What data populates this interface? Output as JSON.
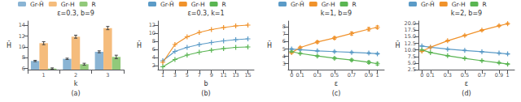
{
  "chart_data": [
    {
      "type": "bar",
      "title": "ε=0.3, b=9",
      "xlabel": "k",
      "ylabel": "H̃",
      "annotations": [
        "(a)"
      ],
      "categories": [
        "1",
        "2",
        "3"
      ],
      "series": [
        {
          "name": "Gr-Ĥ",
          "color": "#8ab4d4",
          "values": [
            7.4,
            7.8,
            9.1
          ],
          "errors": [
            0.12,
            0.12,
            0.18
          ]
        },
        {
          "name": "Gr-H",
          "color": "#f5bc7c",
          "values": [
            10.7,
            11.9,
            13.5
          ],
          "errors": [
            0.28,
            0.28,
            0.3
          ]
        },
        {
          "name": "R",
          "color": "#91c97a",
          "values": [
            6.0,
            6.8,
            8.15
          ],
          "errors": [
            0.12,
            0.18,
            0.32
          ]
        }
      ],
      "ylim": [
        5.8,
        14.8
      ],
      "yticks": [
        6,
        8,
        10,
        12,
        14
      ],
      "grid": false,
      "legend": "top"
    },
    {
      "type": "line",
      "title": "ε=0.3, k=1",
      "xlabel": "b",
      "ylabel": "H̃",
      "annotations": [
        "(b)"
      ],
      "x": [
        1,
        3,
        5,
        7,
        9,
        11,
        13,
        15
      ],
      "series": [
        {
          "name": "Gr-Ĥ",
          "color": "#5b9bc7",
          "values": [
            3.2,
            5.5,
            6.5,
            7.2,
            7.7,
            8.1,
            8.4,
            8.6
          ]
        },
        {
          "name": "Gr-H",
          "color": "#f0922b",
          "values": [
            2.8,
            7.2,
            9.1,
            10.2,
            10.9,
            11.4,
            11.8,
            12.0
          ]
        },
        {
          "name": "R",
          "color": "#5ab552",
          "values": [
            1.7,
            3.5,
            4.6,
            5.3,
            5.8,
            6.2,
            6.5,
            6.6
          ]
        }
      ],
      "xlim": [
        0.2,
        16.0
      ],
      "xticks": [
        1,
        3,
        5,
        7,
        9,
        11,
        13,
        15
      ],
      "ylim": [
        1,
        13
      ],
      "yticks": [
        2,
        4,
        6,
        8,
        10,
        12
      ],
      "marker": "plus",
      "grid": false,
      "legend": "top"
    },
    {
      "type": "line",
      "title": "k=1, b=9",
      "xlabel": "ε",
      "ylabel": "H̃",
      "annotations": [
        "(c)"
      ],
      "x": [
        0.0,
        0.1,
        0.3,
        0.5,
        0.7,
        0.9,
        1.0
      ],
      "series": [
        {
          "name": "Gr-Ĥ",
          "color": "#5b9bc7",
          "values": [
            5.0,
            4.9,
            4.75,
            4.65,
            4.55,
            4.45,
            4.35
          ],
          "errors": [
            0.07,
            0.07,
            0.07,
            0.07,
            0.07,
            0.07,
            0.07
          ]
        },
        {
          "name": "Gr-H",
          "color": "#f0922b",
          "values": [
            4.5,
            5.2,
            5.95,
            6.5,
            7.1,
            7.7,
            7.95
          ],
          "errors": [
            0.1,
            0.12,
            0.15,
            0.18,
            0.2,
            0.22,
            0.2
          ]
        },
        {
          "name": "R",
          "color": "#5ab552",
          "values": [
            4.65,
            4.4,
            4.05,
            3.75,
            3.5,
            3.2,
            3.0
          ],
          "errors": [
            0.08,
            0.08,
            0.1,
            0.12,
            0.14,
            0.18,
            0.18
          ]
        }
      ],
      "xlim": [
        -0.04,
        1.08
      ],
      "xticks": [
        0,
        0.1,
        0.3,
        0.5,
        0.7,
        0.9,
        1
      ],
      "ylim": [
        2.2,
        8.8
      ],
      "yticks": [
        3,
        4,
        5,
        6,
        7,
        8
      ],
      "marker": "plus",
      "grid": false,
      "legend": "top"
    },
    {
      "type": "line",
      "title": "k=2, b=9",
      "xlabel": "ε",
      "ylabel": "H̃",
      "annotations": [
        "(d)"
      ],
      "x": [
        0.0,
        0.1,
        0.3,
        0.5,
        0.7,
        0.9,
        1.0
      ],
      "series": [
        {
          "name": "Gr-Ĥ",
          "color": "#5b9bc7",
          "values": [
            11.5,
            11.0,
            10.3,
            9.8,
            9.3,
            8.8,
            8.5
          ],
          "errors": [
            0.12,
            0.12,
            0.12,
            0.12,
            0.12,
            0.12,
            0.12
          ]
        },
        {
          "name": "Gr-H",
          "color": "#f0922b",
          "values": [
            9.5,
            11.0,
            13.5,
            15.5,
            17.5,
            19.2,
            20.0
          ],
          "errors": [
            0.18,
            0.2,
            0.22,
            0.25,
            0.28,
            0.3,
            0.3
          ]
        },
        {
          "name": "R",
          "color": "#5ab552",
          "values": [
            10.0,
            9.0,
            7.8,
            6.8,
            5.9,
            5.1,
            4.6
          ],
          "errors": [
            0.12,
            0.12,
            0.14,
            0.16,
            0.18,
            0.2,
            0.2
          ]
        }
      ],
      "xlim": [
        -0.04,
        1.08
      ],
      "xticks": [
        0,
        0.1,
        0.3,
        0.5,
        0.7,
        0.9,
        1
      ],
      "ylim": [
        2.5,
        21.0
      ],
      "yticks": [
        2.5,
        {
          "value": 5.0,
          "label": "5.0"
        },
        7.5,
        {
          "value": 10.0,
          "label": "10.0"
        },
        12.5,
        {
          "value": 15.0,
          "label": "15.0"
        },
        17.5,
        {
          "value": 20.0,
          "label": "20.0"
        }
      ],
      "marker": "plus",
      "grid": false,
      "legend": "top"
    }
  ]
}
